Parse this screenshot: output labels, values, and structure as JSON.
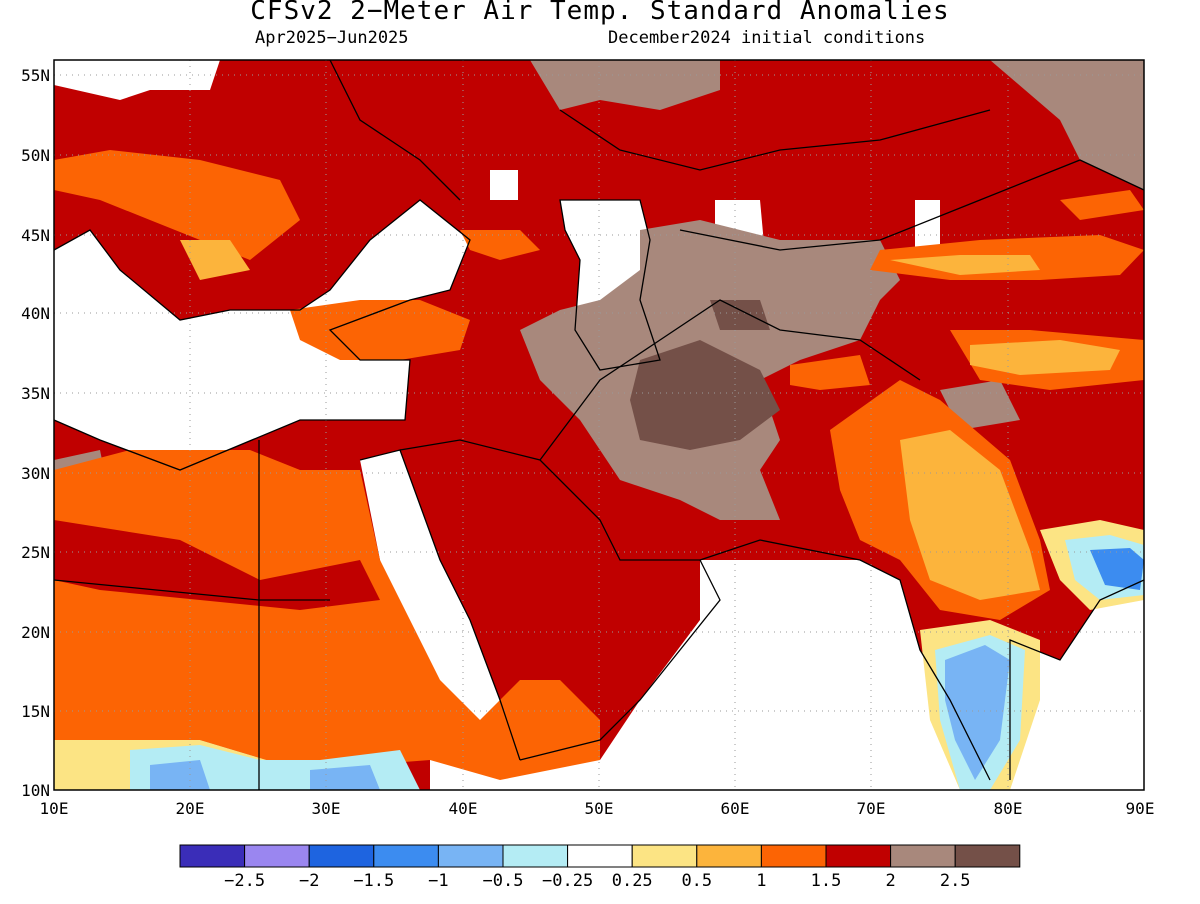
{
  "title": "CFSv2 2−Meter Air Temp. Standard Anomalies",
  "subtitle_left": "Apr2025−Jun2025",
  "subtitle_right": "December2024 initial conditions",
  "lat_labels": [
    "55N",
    "50N",
    "45N",
    "40N",
    "35N",
    "30N",
    "25N",
    "20N",
    "15N",
    "10N"
  ],
  "lon_labels": [
    "10E",
    "20E",
    "30E",
    "40E",
    "50E",
    "60E",
    "70E",
    "80E",
    "90E"
  ],
  "legend": {
    "colors": [
      "#3a2db8",
      "#9a86f0",
      "#1e64e0",
      "#3c8cf0",
      "#78b4f4",
      "#b4ecf4",
      "#ffffff",
      "#fce484",
      "#fcb43c",
      "#fc6404",
      "#c00000",
      "#a8887c",
      "#745048"
    ],
    "tick_labels": [
      "−2.5",
      "−2",
      "−1.5",
      "−1",
      "−0.5",
      "−0.25",
      "0.25",
      "0.5",
      "1",
      "1.5",
      "2",
      "2.5"
    ]
  }
}
